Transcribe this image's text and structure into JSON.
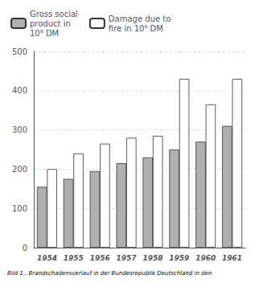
{
  "chart_data": {
    "type": "bar",
    "caption": "Bild 1., Brandschadensverlauf in der Bundesrepublik Deutschland in den",
    "categories": [
      "1954",
      "1955",
      "1956",
      "1957",
      "1958",
      "1959",
      "1960",
      "1961"
    ],
    "series": [
      {
        "name": "Gross social\nproduct in\n10⁹ DM",
        "color": "#b0b0b0",
        "values": [
          155,
          175,
          195,
          215,
          230,
          250,
          270,
          310
        ]
      },
      {
        "name": "Damage due to\nfire in 10⁶ DM",
        "color": "#ffffff",
        "values": [
          200,
          240,
          265,
          280,
          285,
          430,
          365,
          430
        ]
      }
    ],
    "ylim": [
      0,
      500
    ],
    "yticks": [
      0,
      100,
      200,
      300,
      400,
      500
    ],
    "grid": true,
    "legend": "upper left"
  }
}
